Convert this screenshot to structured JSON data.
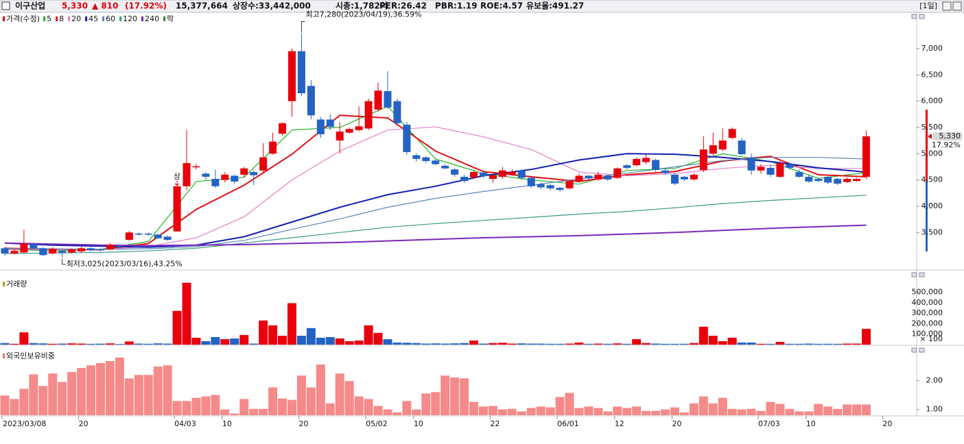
{
  "header": {
    "name": "이구산업",
    "price": "5,330",
    "change": "▲ 810",
    "change_pct": "(17.92%)",
    "volume": "15,377,664",
    "listed": "상장수:33,442,000",
    "cap": "시총:1,782억",
    "per": "PER:26.42",
    "pbr": "PBR:1.19",
    "roe": "ROE:4.57",
    "reserve": "유보율:491.27",
    "period": "[1일]"
  },
  "chart_data": [
    {
      "type": "candlestick",
      "title": "가격(수정)",
      "up_color": "#e8000d",
      "down_color": "#2363c4",
      "categories": [
        "2023/03/08",
        null,
        null,
        null,
        null,
        null,
        null,
        null,
        "20",
        null,
        null,
        null,
        null,
        null,
        null,
        null,
        null,
        null,
        "04/03",
        null,
        null,
        null,
        null,
        "10",
        null,
        null,
        null,
        null,
        null,
        null,
        null,
        "20",
        null,
        null,
        null,
        null,
        null,
        null,
        "05/02",
        null,
        null,
        null,
        null,
        "10",
        null,
        null,
        null,
        null,
        null,
        null,
        null,
        "22",
        null,
        null,
        null,
        null,
        null,
        null,
        "06/01",
        null,
        null,
        null,
        null,
        null,
        "12",
        null,
        null,
        null,
        null,
        null,
        "20",
        null,
        null,
        null,
        null,
        null,
        null,
        null,
        null,
        "07/03",
        null,
        null,
        null,
        null,
        "10",
        null,
        null,
        null,
        null,
        null,
        null,
        null,
        "20"
      ],
      "open": [
        3200,
        3100,
        3120,
        3280,
        3200,
        3100,
        3150,
        3120,
        3140,
        3200,
        3180,
        3180,
        3250,
        3360,
        3480,
        3480,
        3460,
        3420,
        3520,
        4380,
        4740,
        4620,
        4520,
        4500,
        4580,
        4600,
        4650,
        4680,
        5000,
        5380,
        6000,
        6950,
        6290,
        5650,
        5650,
        5250,
        5400,
        5450,
        5480,
        5840,
        6190,
        6000,
        5550,
        4970,
        4930,
        4870,
        4770,
        4700,
        4560,
        4550,
        4640,
        4520,
        4560,
        4610,
        4680,
        4540,
        4420,
        4400,
        4350,
        4340,
        4470,
        4580,
        4510,
        4580,
        4540,
        4780,
        4780,
        4840,
        4880,
        4680,
        4600,
        4560,
        4510,
        4690,
        5000,
        5080,
        5300,
        5250,
        4930,
        4680,
        4730,
        4560,
        4800,
        4650,
        4560,
        4520,
        4560,
        4520,
        4460,
        4480,
        4560,
        null,
        null
      ],
      "close": [
        3100,
        3150,
        3290,
        3200,
        3070,
        3190,
        3110,
        3180,
        3200,
        3160,
        3160,
        3270,
        3230,
        3500,
        3460,
        3460,
        3390,
        3360,
        4380,
        4820,
        4760,
        4560,
        4380,
        4600,
        4470,
        4720,
        4590,
        4930,
        5230,
        5580,
        6950,
        6150,
        5730,
        5370,
        5510,
        5420,
        5470,
        5520,
        6000,
        6200,
        5880,
        5580,
        5030,
        4900,
        4860,
        4800,
        4720,
        4600,
        4480,
        4650,
        4570,
        4590,
        4680,
        4660,
        4540,
        4380,
        4360,
        4340,
        4310,
        4480,
        4580,
        4530,
        4600,
        4510,
        4720,
        4730,
        4900,
        4920,
        4690,
        4630,
        4430,
        4510,
        4600,
        5080,
        5160,
        5250,
        5470,
        4990,
        4680,
        4750,
        4600,
        4820,
        4730,
        4560,
        4470,
        4480,
        4450,
        4430,
        4520,
        4520,
        5330,
        null,
        null
      ],
      "high": [
        3230,
        3180,
        3550,
        3300,
        3220,
        3220,
        3170,
        3200,
        3230,
        3220,
        3200,
        3300,
        3270,
        3530,
        3500,
        3500,
        3480,
        3440,
        4380,
        5450,
        4800,
        4650,
        4700,
        4650,
        4600,
        4750,
        4680,
        5200,
        5400,
        5600,
        7000,
        7280,
        6400,
        5700,
        5750,
        5600,
        5500,
        5900,
        6050,
        6350,
        6570,
        6050,
        5600,
        5000,
        4960,
        4890,
        4800,
        4720,
        4600,
        4680,
        4680,
        4620,
        4750,
        4700,
        4700,
        4560,
        4450,
        4420,
        4370,
        4500,
        4620,
        4600,
        4660,
        4600,
        4740,
        4800,
        4930,
        5000,
        4900,
        4720,
        4620,
        4580,
        4630,
        5330,
        5400,
        5480,
        5500,
        5300,
        5000,
        4800,
        4780,
        4860,
        4820,
        4700,
        4600,
        4540,
        4570,
        4540,
        4550,
        4540,
        5440,
        null,
        null
      ],
      "low": [
        3060,
        3080,
        3100,
        3180,
        3050,
        3080,
        3025,
        3100,
        3120,
        3140,
        3140,
        3160,
        3210,
        3340,
        3440,
        3440,
        3380,
        3340,
        3520,
        4300,
        4700,
        4500,
        4350,
        4450,
        4420,
        4550,
        4400,
        4650,
        4980,
        5350,
        5700,
        6100,
        5650,
        5300,
        5450,
        5000,
        5380,
        5420,
        5450,
        5800,
        5850,
        5550,
        4980,
        4850,
        4820,
        4780,
        4700,
        4560,
        4450,
        4520,
        4540,
        4450,
        4520,
        4580,
        4500,
        4350,
        4320,
        4300,
        4280,
        4320,
        4450,
        4500,
        4480,
        4480,
        4520,
        4700,
        4760,
        4800,
        4660,
        4600,
        4400,
        4480,
        4490,
        4650,
        4960,
        5050,
        5280,
        4970,
        4600,
        4620,
        4560,
        4540,
        4700,
        4540,
        4450,
        4460,
        4420,
        4400,
        4440,
        4470,
        4520,
        null,
        null
      ],
      "ma": [
        {
          "name": "5",
          "color": "#22b022",
          "x": [
            0,
            5,
            10,
            15,
            20,
            25,
            30,
            35,
            40,
            45,
            50,
            55,
            60,
            65,
            70,
            75,
            80,
            85,
            90
          ],
          "values": [
            3180,
            3150,
            3180,
            3330,
            4470,
            4550,
            5450,
            5500,
            5900,
            4900,
            4620,
            4500,
            4420,
            4680,
            4720,
            5000,
            4850,
            4530,
            4640
          ]
        },
        {
          "name": "8",
          "color": "#e01010",
          "x": [
            0,
            5,
            10,
            15,
            20,
            25,
            30,
            35,
            40,
            45,
            50,
            55,
            60,
            65,
            70,
            75,
            80,
            85,
            90
          ],
          "values": [
            3200,
            3180,
            3170,
            3290,
            3940,
            4400,
            4990,
            5730,
            5680,
            5050,
            4660,
            4560,
            4470,
            4600,
            4660,
            4860,
            4950,
            4600,
            4560
          ]
        },
        {
          "name": "20",
          "color": "#e080c8",
          "x": [
            0,
            5,
            10,
            15,
            20,
            25,
            30,
            35,
            40,
            45,
            50,
            55,
            60,
            65,
            70,
            75,
            80,
            85,
            90
          ],
          "values": [
            3180,
            3170,
            3180,
            3230,
            3400,
            3800,
            4500,
            5050,
            5450,
            5510,
            5320,
            5080,
            4650,
            4580,
            4620,
            4720,
            4780,
            4720,
            4720
          ]
        },
        {
          "name": "45",
          "color": "#1020b0",
          "x": [
            0,
            5,
            10,
            15,
            20,
            25,
            30,
            35,
            40,
            45,
            50,
            55,
            60,
            65,
            70,
            75,
            80,
            85,
            90
          ],
          "values": [
            3300,
            3260,
            3240,
            3220,
            3260,
            3420,
            3700,
            3980,
            4220,
            4380,
            4580,
            4700,
            4880,
            5000,
            4990,
            4930,
            4850,
            4730,
            4650
          ]
        },
        {
          "name": "60",
          "color": "#5b86b8",
          "x": [
            0,
            5,
            10,
            15,
            20,
            25,
            30,
            35,
            40,
            45,
            50,
            55,
            60,
            65,
            70,
            75,
            80,
            85,
            90
          ],
          "values": [
            3200,
            3190,
            3180,
            3190,
            3230,
            3350,
            3560,
            3760,
            3980,
            4150,
            4280,
            4400,
            4520,
            4630,
            4750,
            4870,
            4930,
            4930,
            4900
          ]
        },
        {
          "name": "120",
          "color": "#3a9a8a",
          "x": [
            0,
            5,
            10,
            15,
            20,
            25,
            30,
            35,
            40,
            45,
            50,
            55,
            60,
            65,
            70,
            75,
            80,
            85,
            90
          ],
          "values": [
            3100,
            3110,
            3120,
            3150,
            3200,
            3300,
            3400,
            3500,
            3600,
            3670,
            3730,
            3790,
            3850,
            3900,
            3970,
            4050,
            4110,
            4160,
            4210
          ]
        },
        {
          "name": "240",
          "color": "#7a28b8",
          "x": [
            0,
            5,
            10,
            15,
            20,
            25,
            30,
            35,
            40,
            45,
            50,
            55,
            60,
            65,
            70,
            75,
            80,
            85,
            90
          ],
          "values": [
            3300,
            3280,
            3260,
            3250,
            3260,
            3270,
            3290,
            3310,
            3340,
            3370,
            3400,
            3420,
            3440,
            3470,
            3500,
            3540,
            3580,
            3610,
            3640
          ]
        }
      ],
      "legend_extra": "락",
      "annotations": [
        {
          "text": "최고7,280(2023/04/19),36.59%",
          "index": 31,
          "value": 7280,
          "side": "top"
        },
        {
          "text": "최저3,025(2023/03/16),43.25%",
          "index": 6,
          "value": 3025,
          "side": "bottom"
        },
        {
          "text": "상",
          "index": 18,
          "value": 4380,
          "side": "top"
        }
      ],
      "last_price_label": "5,330",
      "last_change_label": "17.92%",
      "ylim": [
        2800,
        7690
      ],
      "yticks": [
        {
          "value": 3500,
          "label": "3,500"
        },
        {
          "value": 4000,
          "label": "4,000"
        },
        {
          "value": 4500,
          "label": "4,500"
        },
        {
          "value": 5000,
          "label": "5,000"
        },
        {
          "value": 5500,
          "label": "5,500"
        },
        {
          "value": 6000,
          "label": "6,000"
        },
        {
          "value": 6500,
          "label": "6,500"
        },
        {
          "value": 7000,
          "label": "7,000"
        }
      ]
    },
    {
      "type": "bar",
      "title": "거래량",
      "values": [
        15000,
        8000,
        118000,
        15000,
        12000,
        8000,
        10000,
        12000,
        10000,
        8000,
        9000,
        12000,
        6000,
        30000,
        10000,
        8000,
        12000,
        10000,
        322000,
        590000,
        65000,
        33000,
        72000,
        52000,
        59000,
        92000,
        10000,
        230000,
        184000,
        85000,
        395000,
        85000,
        158000,
        66000,
        72000,
        59000,
        33000,
        39000,
        184000,
        112000,
        52000,
        20000,
        18000,
        15000,
        10000,
        12000,
        10000,
        12000,
        15000,
        39000,
        10000,
        15000,
        18000,
        10000,
        12000,
        10000,
        10000,
        8000,
        8000,
        10000,
        20000,
        8000,
        10000,
        8000,
        12000,
        8000,
        52000,
        15000,
        10000,
        8000,
        8000,
        8000,
        15000,
        171000,
        85000,
        33000,
        66000,
        20000,
        20000,
        8000,
        8000,
        26000,
        8000,
        8000,
        10000,
        8000,
        8000,
        8000,
        10000,
        10000,
        151000
      ],
      "unit_label": "× 100",
      "ylim": [
        0,
        640000
      ],
      "yticks": [
        {
          "value": 100000,
          "label": "100,000"
        },
        {
          "value": 200000,
          "label": "200,000"
        },
        {
          "value": 300000,
          "label": "300,000"
        },
        {
          "value": 400000,
          "label": "400,000"
        },
        {
          "value": 500000,
          "label": "500,000"
        }
      ]
    },
    {
      "type": "bar",
      "title": "외국인보유비중",
      "color": "#f58a8a",
      "values": [
        1.48,
        1.36,
        1.71,
        2.21,
        1.81,
        2.24,
        1.95,
        2.29,
        2.43,
        2.52,
        2.6,
        2.67,
        2.79,
        2.07,
        2.19,
        2.19,
        2.48,
        2.52,
        1.29,
        1.29,
        1.4,
        1.45,
        1.5,
        1.0,
        0.86,
        1.36,
        1.02,
        1.02,
        1.76,
        1.38,
        1.33,
        2.17,
        1.76,
        2.55,
        1.21,
        2.24,
        1.98,
        1.45,
        1.36,
        1.12,
        1.0,
        0.9,
        1.29,
        1.0,
        1.55,
        1.6,
        2.17,
        2.1,
        2.07,
        1.26,
        1.1,
        1.12,
        1.0,
        1.02,
        0.93,
        1.05,
        1.1,
        1.07,
        1.43,
        1.57,
        1.05,
        1.1,
        1.05,
        0.93,
        1.1,
        1.05,
        1.1,
        0.95,
        0.95,
        1.0,
        1.07,
        0.9,
        1.21,
        1.45,
        1.21,
        1.4,
        1.02,
        1.0,
        1.02,
        0.95,
        1.26,
        1.19,
        1.02,
        0.93,
        0.93,
        1.19,
        1.1,
        1.02,
        1.17,
        1.17,
        1.17
      ],
      "ylim": [
        0.8,
        3.07
      ],
      "yticks": [
        {
          "value": 1,
          "label": "1.00"
        },
        {
          "value": 2,
          "label": "2.00"
        }
      ]
    }
  ]
}
